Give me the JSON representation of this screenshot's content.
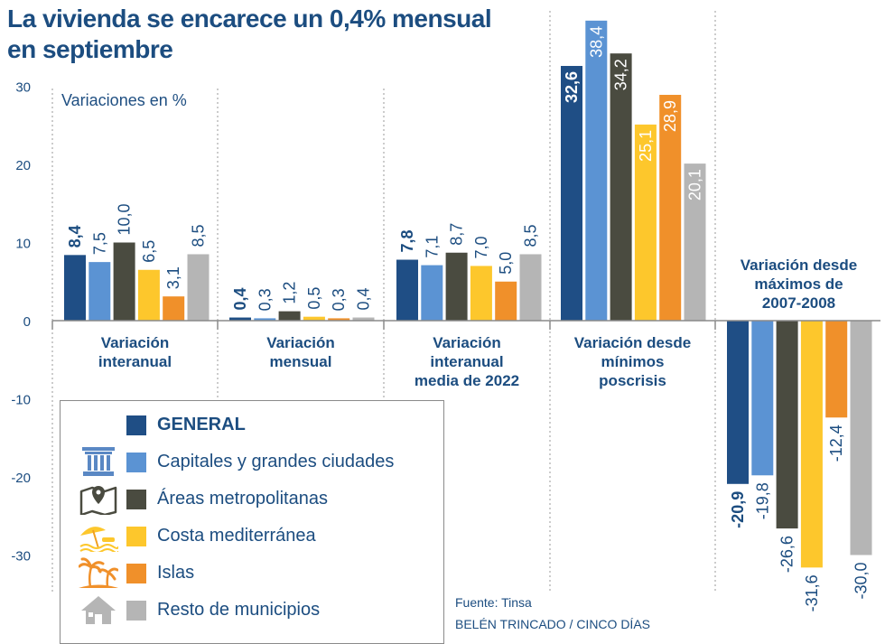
{
  "title_lines": [
    "La vivienda se encarece un 0,4% mensual",
    "en septiembre"
  ],
  "units_label": "Variaciones en %",
  "source": "Fuente: Tinsa",
  "credit": "BELÉN TRINCADO / CINCO DÍAS",
  "colors": {
    "general": "#1f4e85",
    "capitales": "#5b93d3",
    "metropolitanas": "#4a4b40",
    "costa": "#fdc72c",
    "islas": "#f0902a",
    "resto": "#b5b5b5",
    "text": "#1c4d80",
    "legend_icon": "#5a88c4"
  },
  "legend": [
    {
      "label": "GENERAL",
      "color_key": "general",
      "bold": true,
      "icon": ""
    },
    {
      "label": "Capitales y grandes ciudades",
      "color_key": "capitales",
      "bold": false,
      "icon": "column-icon"
    },
    {
      "label": "Áreas metropolitanas",
      "color_key": "metropolitanas",
      "bold": false,
      "icon": "map-pin-icon"
    },
    {
      "label": "Costa mediterránea",
      "color_key": "costa",
      "bold": false,
      "icon": "beach-umbrella-icon"
    },
    {
      "label": "Islas",
      "color_key": "islas",
      "bold": false,
      "icon": "palm-trees-icon"
    },
    {
      "label": "Resto de municipios",
      "color_key": "resto",
      "bold": false,
      "icon": "house-icon"
    }
  ],
  "chart_data": {
    "type": "bar",
    "title": "La vivienda se encarece un 0,4% mensual en septiembre",
    "ylabel": "Variaciones en %",
    "ylim": [
      -35,
      39
    ],
    "yticks": [
      30,
      20,
      10,
      0,
      -10,
      -20,
      -30
    ],
    "grid": false,
    "categories": [
      "Variación interanual",
      "Variación mensual",
      "Variación interanual media de 2022",
      "Variación desde mínimos poscrisis",
      "Variación desde máximos de 2007-2008"
    ],
    "group_label_lines": [
      [
        "Variación",
        "interanual"
      ],
      [
        "Variación",
        "mensual"
      ],
      [
        "Variación",
        "interanual",
        "media de 2022"
      ],
      [
        "Variación desde",
        "mínimos",
        "poscrisis"
      ],
      [
        "Variación desde",
        "máximos de",
        "2007-2008"
      ]
    ],
    "series": [
      {
        "name": "GENERAL",
        "color_key": "general",
        "values": [
          8.4,
          0.4,
          7.8,
          32.6,
          -20.9
        ],
        "labels": [
          "8,4",
          "0,4",
          "7,8",
          "32,6",
          "-20,9"
        ]
      },
      {
        "name": "Capitales y grandes ciudades",
        "color_key": "capitales",
        "values": [
          7.5,
          0.3,
          7.1,
          38.4,
          -19.8
        ],
        "labels": [
          "7,5",
          "0,3",
          "7,1",
          "38,4",
          "-19,8"
        ]
      },
      {
        "name": "Áreas metropolitanas",
        "color_key": "metropolitanas",
        "values": [
          10.0,
          1.2,
          8.7,
          34.2,
          -26.6
        ],
        "labels": [
          "10,0",
          "1,2",
          "8,7",
          "34,2",
          "-26,6"
        ]
      },
      {
        "name": "Costa mediterránea",
        "color_key": "costa",
        "values": [
          6.5,
          0.5,
          7.0,
          25.1,
          -31.6
        ],
        "labels": [
          "6,5",
          "0,5",
          "7,0",
          "25,1",
          "-31,6"
        ]
      },
      {
        "name": "Islas",
        "color_key": "islas",
        "values": [
          3.1,
          0.3,
          5.0,
          28.9,
          -12.4
        ],
        "labels": [
          "3,1",
          "0,3",
          "5,0",
          "28,9",
          "-12,4"
        ]
      },
      {
        "name": "Resto de municipios",
        "color_key": "resto",
        "values": [
          8.5,
          0.4,
          8.5,
          20.1,
          -30.0
        ],
        "labels": [
          "8,5",
          "0,4",
          "8,5",
          "20,1",
          "-30,0"
        ]
      }
    ]
  }
}
